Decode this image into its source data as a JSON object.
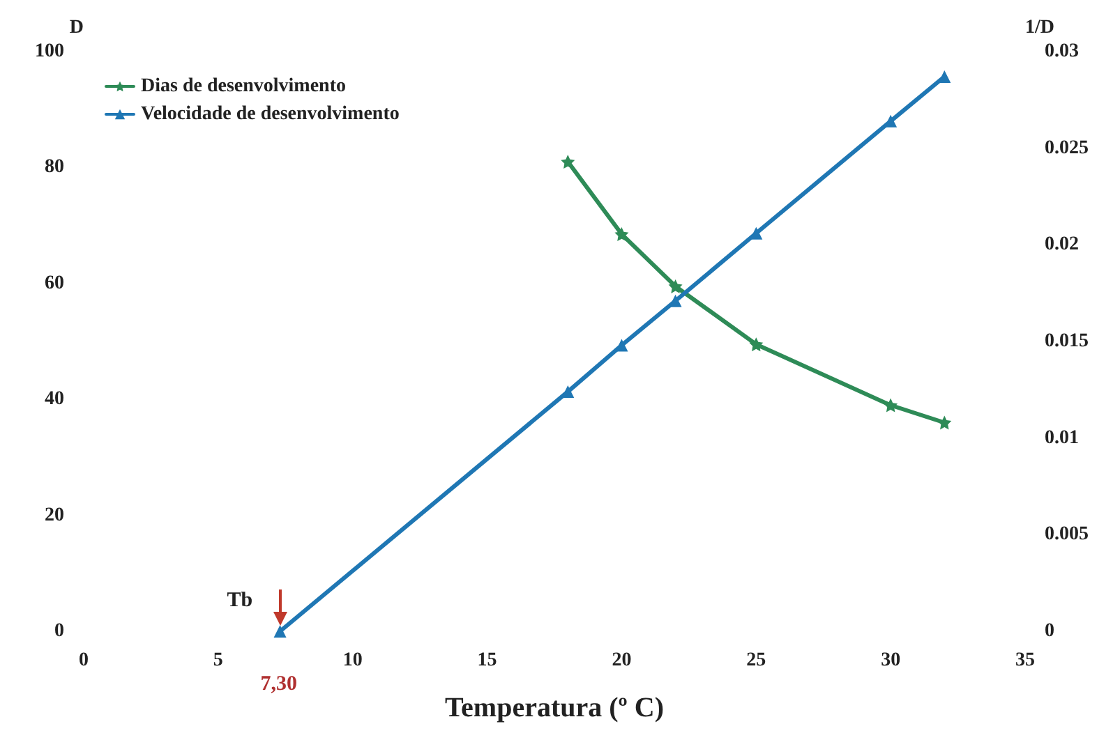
{
  "chart_data": {
    "type": "line",
    "xlabel": "Temperatura (º C)",
    "ylabel": "D",
    "y2label": "1/D",
    "xlim": [
      0,
      35
    ],
    "xticks": [
      0,
      5,
      10,
      15,
      20,
      25,
      30,
      35
    ],
    "ylim": [
      0,
      100
    ],
    "yticks": [
      0,
      20,
      40,
      60,
      80,
      100
    ],
    "y2lim": [
      0,
      0.03
    ],
    "y2ticks": [
      0,
      0.005,
      0.01,
      0.015,
      0.02,
      0.025,
      0.03
    ],
    "grid": false,
    "legend": "top left",
    "line_style": "solid",
    "series": [
      {
        "name": "Dias de desenvolvimento",
        "color": "#2e8b57",
        "marker": "star",
        "x": [
          18,
          20,
          22,
          25,
          30,
          32
        ],
        "values": [
          81,
          68.5,
          59.5,
          49.5,
          39,
          36
        ]
      },
      {
        "name": "Velocidade de desenvolvimento",
        "color": "#1f77b4",
        "marker": "triangle",
        "axis": "y2",
        "x": [
          7.3,
          18,
          20,
          22,
          25,
          30,
          32
        ],
        "values": [
          0,
          0.0124,
          0.0148,
          0.0171,
          0.0206,
          0.0264,
          0.0287
        ]
      }
    ],
    "annotations": [
      {
        "text": "Tb",
        "x": 7.3,
        "y": 0
      },
      {
        "text": "7,30",
        "x": 7.3,
        "y": 0
      }
    ]
  }
}
